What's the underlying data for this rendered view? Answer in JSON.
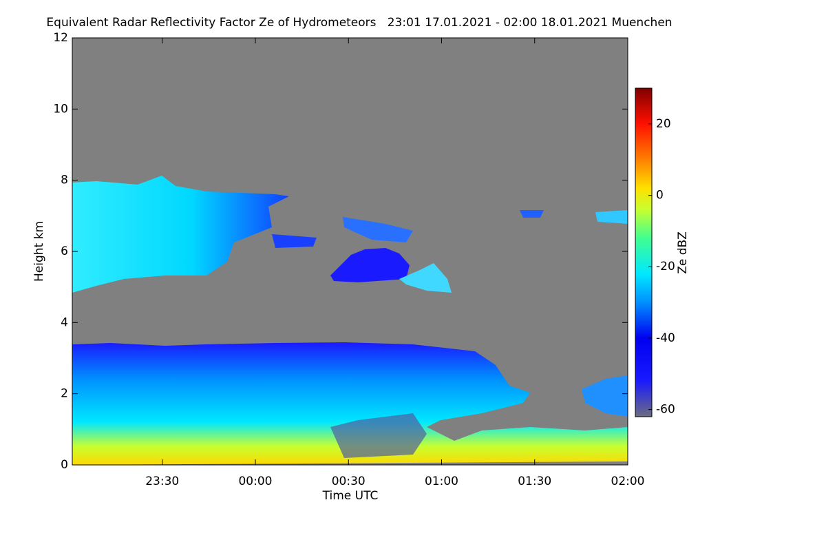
{
  "chart_data": {
    "type": "heatmap",
    "title": "Equivalent Radar Reflectivity Factor Ze of Hydrometeors   23:01 17.01.2021 - 02:00 18.01.2021 Muenchen",
    "xlabel": "Time UTC",
    "ylabel": "Height km",
    "colorbar_label": "Ze dBZ",
    "xlim": [
      1,
      180
    ],
    "xticks": [
      {
        "value": 30,
        "label": "23:30"
      },
      {
        "value": 60,
        "label": "00:00"
      },
      {
        "value": 90,
        "label": "00:30"
      },
      {
        "value": 120,
        "label": "01:00"
      },
      {
        "value": 150,
        "label": "01:30"
      },
      {
        "value": 180,
        "label": "02:00"
      }
    ],
    "ylim": [
      0,
      12
    ],
    "yticks": [
      0,
      2,
      4,
      6,
      8,
      10,
      12
    ],
    "clim": [
      -62,
      30
    ],
    "cticks": [
      -60,
      -40,
      -20,
      0,
      20
    ],
    "colorscale": [
      [
        -62,
        "#6c6c80"
      ],
      [
        -52,
        "#1a1aff"
      ],
      [
        -40,
        "#0000f0"
      ],
      [
        -30,
        "#0090ff"
      ],
      [
        -22,
        "#00e8ff"
      ],
      [
        -12,
        "#40ff90"
      ],
      [
        -4,
        "#c8ff30"
      ],
      [
        2,
        "#ffe000"
      ],
      [
        10,
        "#ff8000"
      ],
      [
        20,
        "#ff1000"
      ],
      [
        30,
        "#800000"
      ]
    ],
    "background": "#808080"
  }
}
